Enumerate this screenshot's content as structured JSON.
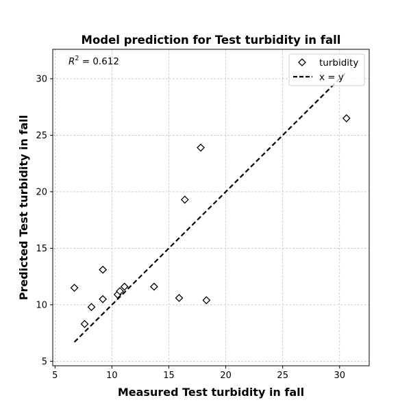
{
  "chart_data": {
    "type": "scatter",
    "title": "Model prediction for Test turbidity in fall",
    "xlabel": "Measured Test turbidity in fall",
    "ylabel": "Predicted Test turbidity in fall",
    "xlim": [
      4.8,
      32.6
    ],
    "ylim": [
      4.6,
      32.6
    ],
    "xticks": [
      5,
      10,
      15,
      20,
      25,
      30
    ],
    "yticks": [
      5,
      10,
      15,
      20,
      25,
      30
    ],
    "grid": true,
    "legend_position": "top-right",
    "annotation": {
      "r2_prefix": "R",
      "r2_sup": "2",
      "r2_value": " = 0.612"
    },
    "series": [
      {
        "name": "turbidity",
        "marker": "diamond",
        "color": "#000000",
        "points": [
          {
            "x": 6.7,
            "y": 11.5
          },
          {
            "x": 7.6,
            "y": 8.3
          },
          {
            "x": 8.2,
            "y": 9.8
          },
          {
            "x": 9.2,
            "y": 13.1
          },
          {
            "x": 9.2,
            "y": 10.5
          },
          {
            "x": 10.5,
            "y": 10.9
          },
          {
            "x": 10.7,
            "y": 11.2
          },
          {
            "x": 11.1,
            "y": 11.6
          },
          {
            "x": 13.7,
            "y": 11.6
          },
          {
            "x": 15.9,
            "y": 10.6
          },
          {
            "x": 16.4,
            "y": 19.3
          },
          {
            "x": 17.8,
            "y": 23.9
          },
          {
            "x": 18.3,
            "y": 10.4
          },
          {
            "x": 30.6,
            "y": 26.5
          }
        ]
      },
      {
        "name": "x = y",
        "line_style": "dashed",
        "color": "#000000",
        "points": [
          {
            "x": 6.7,
            "y": 6.7
          },
          {
            "x": 30.6,
            "y": 30.6
          }
        ]
      }
    ]
  }
}
